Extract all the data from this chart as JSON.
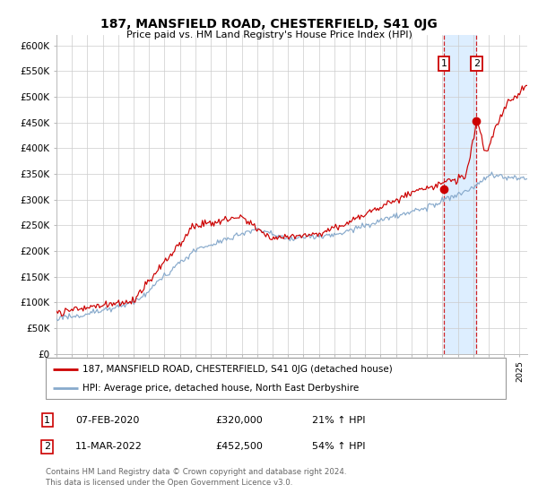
{
  "title": "187, MANSFIELD ROAD, CHESTERFIELD, S41 0JG",
  "subtitle": "Price paid vs. HM Land Registry's House Price Index (HPI)",
  "legend_line1": "187, MANSFIELD ROAD, CHESTERFIELD, S41 0JG (detached house)",
  "legend_line2": "HPI: Average price, detached house, North East Derbyshire",
  "annotation1_date": "07-FEB-2020",
  "annotation1_price": "£320,000",
  "annotation1_hpi": "21% ↑ HPI",
  "annotation2_date": "11-MAR-2022",
  "annotation2_price": "£452,500",
  "annotation2_hpi": "54% ↑ HPI",
  "footnote1": "Contains HM Land Registry data © Crown copyright and database right 2024.",
  "footnote2": "This data is licensed under the Open Government Licence v3.0.",
  "red_color": "#cc0000",
  "blue_color": "#88aacc",
  "highlight_color": "#ddeeff",
  "grid_color": "#cccccc",
  "background_color": "#ffffff",
  "ylim": [
    0,
    620000
  ],
  "yticks": [
    0,
    50000,
    100000,
    150000,
    200000,
    250000,
    300000,
    350000,
    400000,
    450000,
    500000,
    550000,
    600000
  ],
  "ytick_labels": [
    "£0",
    "£50K",
    "£100K",
    "£150K",
    "£200K",
    "£250K",
    "£300K",
    "£350K",
    "£400K",
    "£450K",
    "£500K",
    "£550K",
    "£600K"
  ],
  "sale1_x": 2020.1,
  "sale1_y": 320000,
  "sale2_x": 2022.2,
  "sale2_y": 452500,
  "vline1_x": 2020.1,
  "vline2_x": 2022.2,
  "xlim_left": 1995,
  "xlim_right": 2025.5
}
